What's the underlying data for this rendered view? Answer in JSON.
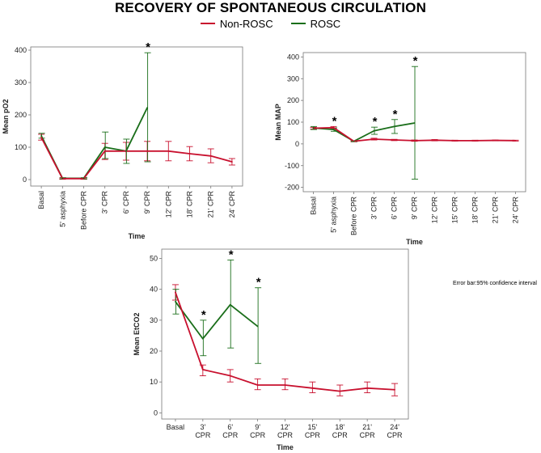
{
  "figure": {
    "title": "RECOVERY OF SPONTANEOUS CIRCULATION",
    "note": "Error bar:95% confidence interval"
  },
  "legend": [
    {
      "name": "Non-ROSC",
      "color": "#c8102e"
    },
    {
      "name": "ROSC",
      "color": "#1a6e1a"
    }
  ],
  "chart_data": [
    {
      "type": "line",
      "title": "",
      "xlabel": "Time",
      "ylabel": "Mean pO2",
      "categories": [
        "Basal",
        "5' asphyxia",
        "Before CPR",
        "3' CPR",
        "6' CPR",
        "9' CPR",
        "12' CPR",
        "18' CPR",
        "21' CPR",
        "24' CPR"
      ],
      "ylim": [
        -20,
        410
      ],
      "yticks": [
        0,
        100,
        200,
        300,
        400
      ],
      "asterisk_text": "*",
      "series": [
        {
          "name": "Non-ROSC",
          "color": "#c8102e",
          "values": [
            130,
            3,
            3,
            88,
            88,
            88,
            88,
            80,
            73,
            55
          ],
          "lower": [
            122,
            1,
            1,
            62,
            60,
            58,
            58,
            58,
            52,
            45
          ],
          "upper": [
            140,
            5,
            5,
            112,
            115,
            118,
            118,
            102,
            95,
            65
          ]
        },
        {
          "name": "ROSC",
          "color": "#1a6e1a",
          "values": [
            135,
            4,
            4,
            100,
            88,
            222,
            null,
            null,
            null,
            null
          ],
          "lower": [
            128,
            2,
            2,
            65,
            50,
            55,
            null,
            null,
            null,
            null
          ],
          "upper": [
            143,
            6,
            6,
            147,
            125,
            392,
            null,
            null,
            null,
            null
          ]
        }
      ],
      "significant": [
        "9' CPR"
      ]
    },
    {
      "type": "line",
      "title": "",
      "xlabel": "Time",
      "ylabel": "Mean MAP",
      "categories": [
        "Basal",
        "5' asphyxia",
        "Before CPR",
        "3' CPR",
        "6' CPR",
        "9' CPR",
        "12' CPR",
        "15' CPR",
        "18' CPR",
        "21' CPR",
        "24' CPR"
      ],
      "ylim": [
        -220,
        420
      ],
      "yticks": [
        -200,
        -100,
        0,
        100,
        200,
        300,
        400
      ],
      "asterisk_text": "*",
      "series": [
        {
          "name": "Non-ROSC",
          "color": "#c8102e",
          "values": [
            72,
            75,
            12,
            22,
            18,
            15,
            17,
            15,
            15,
            16,
            15
          ],
          "lower": [
            68,
            70,
            10,
            18,
            15,
            12,
            14,
            13,
            13,
            14,
            13
          ],
          "upper": [
            76,
            80,
            14,
            26,
            21,
            18,
            20,
            17,
            17,
            18,
            17
          ]
        },
        {
          "name": "ROSC",
          "color": "#1a6e1a",
          "values": [
            73,
            66,
            12,
            60,
            80,
            96,
            null,
            null,
            null,
            null,
            null
          ],
          "lower": [
            66,
            58,
            10,
            44,
            48,
            -162,
            null,
            null,
            null,
            null,
            null
          ],
          "upper": [
            80,
            74,
            14,
            77,
            112,
            356,
            null,
            null,
            null,
            null,
            null
          ]
        }
      ],
      "significant": [
        "5' asphyxia",
        "3' CPR",
        "6' CPR",
        "9' CPR"
      ]
    },
    {
      "type": "line",
      "title": "",
      "xlabel": "Time",
      "ylabel": "Mean EtCO2",
      "categories": [
        "Basal",
        "3'\nCPR",
        "6'\nCPR",
        "9'\nCPR",
        "12'\nCPR",
        "15'\nCPR",
        "18'\nCPR",
        "21'\nCPR",
        "24'\nCPR"
      ],
      "ylim": [
        -2,
        53
      ],
      "yticks": [
        0,
        10,
        20,
        30,
        40,
        50
      ],
      "asterisk_text": "*",
      "series": [
        {
          "name": "Non-ROSC",
          "color": "#c8102e",
          "values": [
            39,
            14,
            12,
            9,
            9,
            8,
            7,
            8,
            7.5
          ],
          "lower": [
            36.5,
            12,
            10,
            7.5,
            7.5,
            6.5,
            5.5,
            6.5,
            5.5
          ],
          "upper": [
            41.5,
            15.5,
            14,
            11,
            11,
            10,
            9,
            10,
            9.5
          ]
        },
        {
          "name": "ROSC",
          "color": "#1a6e1a",
          "values": [
            36,
            24,
            35,
            28,
            null,
            null,
            null,
            null,
            null
          ],
          "lower": [
            32,
            18.5,
            21,
            16,
            null,
            null,
            null,
            null,
            null
          ],
          "upper": [
            40,
            30,
            49.5,
            40.5,
            null,
            null,
            null,
            null,
            null
          ]
        }
      ],
      "significant": [
        "3'\nCPR",
        "6'\nCPR",
        "9'\nCPR"
      ]
    }
  ]
}
